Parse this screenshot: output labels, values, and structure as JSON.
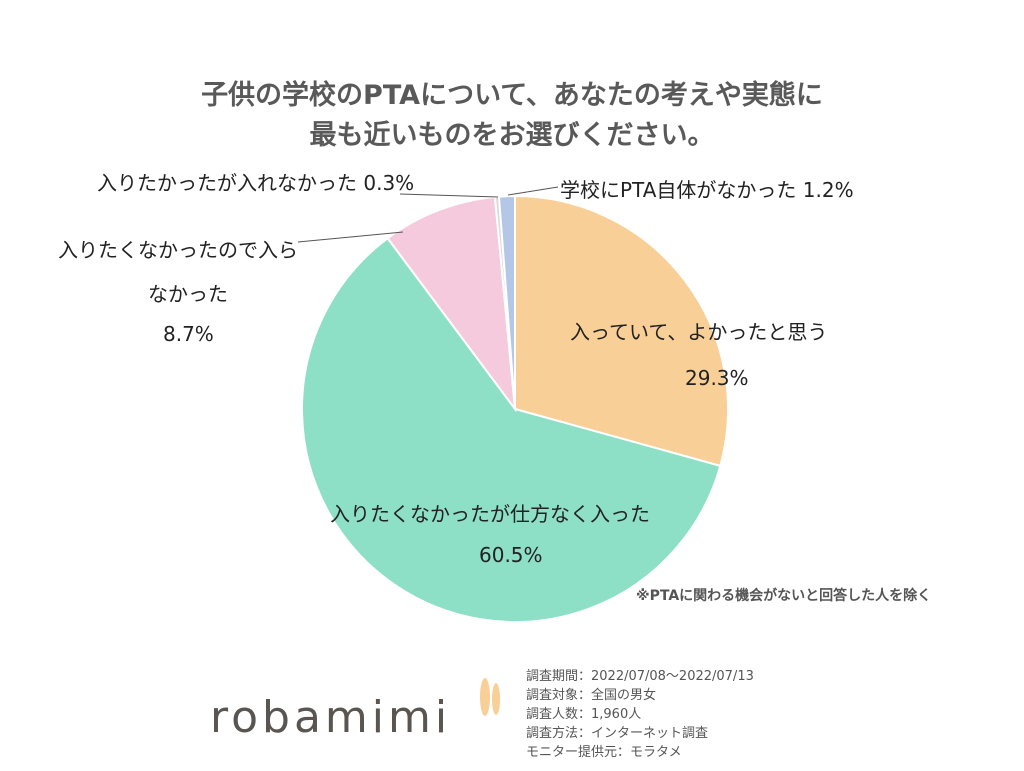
{
  "title": {
    "line1": "子供の学校のPTAについて、あなたの考えや実態に",
    "line2": "最も近いものをお選びください。"
  },
  "chart_data": {
    "type": "pie",
    "slices": [
      {
        "label": "入っていて、よかったと思う",
        "value": 29.3,
        "value_label": "29.3%",
        "color": "#f8cf96"
      },
      {
        "label": "入りたくなかったが仕方なく入った",
        "value": 60.5,
        "value_label": "60.5%",
        "color": "#8ddfc5"
      },
      {
        "label": "入りたくなかったので入らなかった",
        "value": 8.7,
        "value_label": "8.7%",
        "color": "#f6cadd"
      },
      {
        "label": "入りたかったが入れなかった",
        "value": 0.3,
        "value_label": "0.3%",
        "color": "#d9d9d9"
      },
      {
        "label": "学校にPTA自体がなかった",
        "value": 1.2,
        "value_label": "1.2%",
        "color": "#b4c7e7"
      }
    ]
  },
  "labels": {
    "s0_line1": "入っていて、よかったと思う",
    "s0_line2": "29.3%",
    "s1_line1": "入りたくなかったが仕方なく入った",
    "s1_line2": "60.5%",
    "s2_line1": "入りたくなかったので入ら",
    "s2_line2": "なかった",
    "s2_line3": "8.7%",
    "s3_text": "入りたかったが入れなかった 0.3%",
    "s4_text": "学校にPTA自体がなかった 1.2%"
  },
  "note": "※PTAに関わる機会がないと回答した人を除く",
  "survey_info": [
    "調査期間：2022/07/08～2022/07/13",
    "調査対象：全国の男女",
    "調査人数：1,960人",
    "調査方法：インターネット調査",
    "モニター提供元：モラタメ"
  ],
  "logo": {
    "text": "robamimi",
    "color": "#5a5550",
    "ear_color": "#f8cf96"
  }
}
